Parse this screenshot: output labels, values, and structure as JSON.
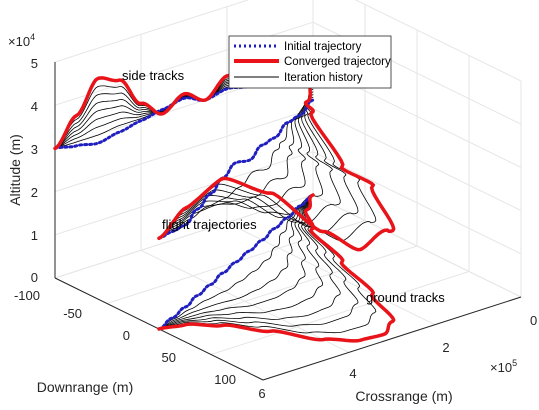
{
  "chart_data": {
    "type": "line",
    "view": "3d",
    "xlabel": "Crossrange (m)",
    "ylabel": "Downrange (m)",
    "zlabel": "Altitude (m)",
    "x_exponent": "×10^5",
    "z_exponent": "×10^4",
    "xlim": [
      0,
      6
    ],
    "ylim": [
      -100,
      100
    ],
    "zlim": [
      0,
      5
    ],
    "x_ticks": [
      "0",
      "2",
      "4",
      "6"
    ],
    "y_ticks": [
      "-100",
      "-50",
      "0",
      "50",
      "100"
    ],
    "z_ticks": [
      "0",
      "1",
      "2",
      "3",
      "4",
      "5"
    ],
    "grid": true,
    "legend_placement": "top",
    "legend": [
      {
        "label": "Initial trajectory",
        "color": "#1f1fbf",
        "style": "dotted"
      },
      {
        "label": "Converged trajectory",
        "color": "#e8141a",
        "style": "solid-thick"
      },
      {
        "label": "Iteration history",
        "color": "#000000",
        "style": "solid-thin"
      }
    ],
    "annotations": {
      "side": "side tracks",
      "flight": "flight trajectories",
      "ground": "ground tracks"
    },
    "iteration_count": 7,
    "converged_profile": {
      "crossrange": [
        0,
        0.5,
        1,
        1.5,
        2,
        2.5,
        3,
        3.5,
        4,
        4.5,
        5,
        5.5,
        6
      ],
      "downrange": [
        0,
        5,
        20,
        45,
        75,
        90,
        92,
        80,
        40,
        -10,
        -60,
        -85,
        -100
      ],
      "altitude": [
        3.0,
        3.6,
        4.3,
        4.1,
        3.4,
        3.0,
        3.3,
        3.0,
        3.4,
        3.1,
        3.6,
        3.4,
        3.6
      ]
    },
    "initial_profile": {
      "crossrange": [
        0,
        0.5,
        1,
        1.5,
        2,
        2.5,
        3,
        3.5,
        4,
        4.5,
        5,
        5.5,
        6
      ],
      "downrange": [
        0,
        -8,
        -16,
        -25,
        -33,
        -42,
        -50,
        -58,
        -66,
        -75,
        -83,
        -92,
        -100
      ],
      "altitude": [
        3.0,
        2.9,
        2.8,
        2.9,
        3.0,
        3.1,
        3.2,
        3.0,
        3.1,
        3.0,
        3.1,
        3.0,
        3.1
      ]
    }
  }
}
